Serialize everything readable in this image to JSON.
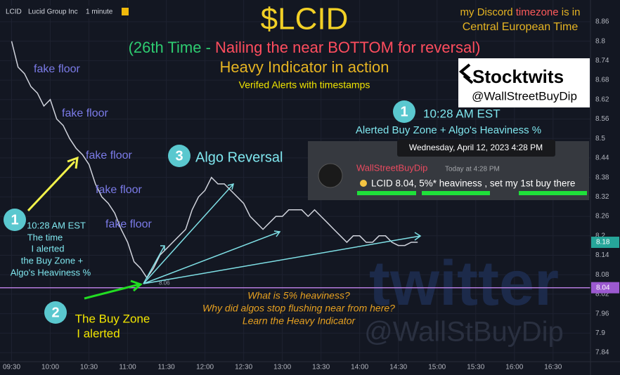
{
  "chart_data": {
    "type": "line",
    "header": {
      "symbol": "LCID",
      "name": "Lucid Group Inc",
      "interval": "1 minute"
    },
    "title": "$LCID",
    "subtitle": [
      "(26th Time - ",
      "Nailing the near BOTTOM for reversal)"
    ],
    "subtitle2": "Heavy Indicator in action",
    "subtitle3": "Verifed Alerts with timestamps",
    "timezone": [
      "my Discord ",
      "timezone",
      " is in",
      "Central European Time"
    ],
    "stocktwits": {
      "brand": "Stocktwits",
      "handle": "@WallStreetBuyDip"
    },
    "watermark": {
      "brand": "twitter",
      "handle": "@WallStBuyDip"
    },
    "fake_floor": [
      "fake floor",
      "fake floor",
      "fake floor",
      "fake floor",
      "fake floor"
    ],
    "badges": [
      "1",
      "2",
      "3",
      "1"
    ],
    "left_note": [
      "10:28 AM EST",
      "The time",
      "I alerted",
      "the Buy Zone +",
      "Algo's Heaviness %"
    ],
    "buy_zone": [
      "The Buy Zone",
      "I alerted"
    ],
    "algo_reversal": "Algo Reversal",
    "right_note": [
      "10:28 AM EST",
      "Alerted Buy Zone + Algo's Heaviness %"
    ],
    "discord": {
      "date": "Wednesday, April 12, 2023 4:28 PM",
      "user": "WallStreetBuyDip",
      "time": "Today at 4:28 PM",
      "message": "LCID 8.04, 5%* heaviness , set my 1st buy there"
    },
    "questions": [
      "What is 5% heaviness?",
      "Why did algos stop flushing near from here?",
      "Learn the Heavy Indicator"
    ],
    "low_label": 8.06,
    "buy_line": 8.04,
    "price_labels": [
      8.18,
      8.04
    ],
    "x": [
      "09:30",
      "09:35",
      "09:40",
      "09:45",
      "09:50",
      "09:55",
      "10:00",
      "10:05",
      "10:10",
      "10:15",
      "10:20",
      "10:25",
      "10:30",
      "10:35",
      "10:40",
      "10:45",
      "10:50",
      "10:55",
      "11:00",
      "11:05",
      "11:10",
      "11:15",
      "11:20",
      "11:25",
      "11:30",
      "11:35",
      "11:40",
      "11:45",
      "11:50",
      "11:55",
      "12:00",
      "12:05",
      "12:10",
      "12:15",
      "12:20",
      "12:25",
      "12:30",
      "12:35",
      "12:40",
      "12:45",
      "12:50",
      "12:55",
      "13:00",
      "13:05",
      "13:10",
      "13:15",
      "13:20",
      "13:25",
      "13:30",
      "13:35",
      "13:40",
      "13:45",
      "13:50",
      "13:55",
      "14:00",
      "14:05",
      "14:10",
      "14:15",
      "14:20",
      "14:25",
      "14:30",
      "14:35",
      "14:40",
      "14:45"
    ],
    "series": [
      {
        "name": "LCID",
        "color": "#d0d3dc",
        "values": [
          8.8,
          8.72,
          8.7,
          8.66,
          8.64,
          8.6,
          8.62,
          8.56,
          8.54,
          8.5,
          8.47,
          8.45,
          8.42,
          8.36,
          8.32,
          8.3,
          8.27,
          8.22,
          8.18,
          8.12,
          8.1,
          8.07,
          8.1,
          8.14,
          8.16,
          8.18,
          8.2,
          8.22,
          8.28,
          8.32,
          8.34,
          8.38,
          8.36,
          8.36,
          8.34,
          8.32,
          8.3,
          8.26,
          8.24,
          8.22,
          8.24,
          8.26,
          8.26,
          8.28,
          8.28,
          8.28,
          8.26,
          8.28,
          8.26,
          8.24,
          8.22,
          8.2,
          8.18,
          8.2,
          8.2,
          8.18,
          8.18,
          8.2,
          8.2,
          8.18,
          8.17,
          8.17,
          8.18,
          8.18
        ]
      }
    ],
    "xlim": [
      "09:21",
      "16:59"
    ],
    "xticks": [
      "09:30",
      "10:00",
      "10:30",
      "11:00",
      "11:30",
      "12:00",
      "12:30",
      "13:00",
      "13:30",
      "14:00",
      "14:30",
      "15:00",
      "15:30",
      "16:00",
      "16:30"
    ],
    "ylim": [
      7.812,
      8.927
    ],
    "yticks": [
      8.86,
      8.8,
      8.74,
      8.68,
      8.62,
      8.56,
      8.5,
      8.44,
      8.38,
      8.32,
      8.26,
      8.2,
      8.14,
      8.08,
      8.02,
      7.96,
      7.9,
      7.84
    ]
  }
}
